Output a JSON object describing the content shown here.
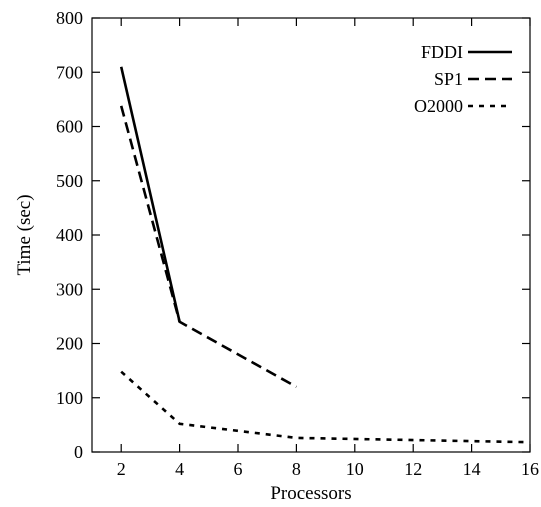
{
  "chart_data": {
    "type": "line",
    "title": "",
    "xlabel": "Processors",
    "ylabel": "Time (sec)",
    "xlim": [
      1,
      16
    ],
    "ylim": [
      0,
      800
    ],
    "x_ticks": [
      2,
      4,
      6,
      8,
      10,
      12,
      14,
      16
    ],
    "y_ticks": [
      0,
      100,
      200,
      300,
      400,
      500,
      600,
      700,
      800
    ],
    "grid": false,
    "legend_position": "top-right",
    "series": [
      {
        "name": "FDDI",
        "line_style": "solid",
        "color": "#000000",
        "x": [
          2,
          4
        ],
        "y": [
          710,
          240
        ]
      },
      {
        "name": "SP1",
        "line_style": "dashed",
        "color": "#000000",
        "x": [
          2,
          4,
          8
        ],
        "y": [
          638,
          240,
          120
        ]
      },
      {
        "name": "O2000",
        "line_style": "dotted",
        "color": "#000000",
        "x": [
          2,
          4,
          8,
          16
        ],
        "y": [
          148,
          52,
          26,
          18
        ]
      }
    ]
  }
}
